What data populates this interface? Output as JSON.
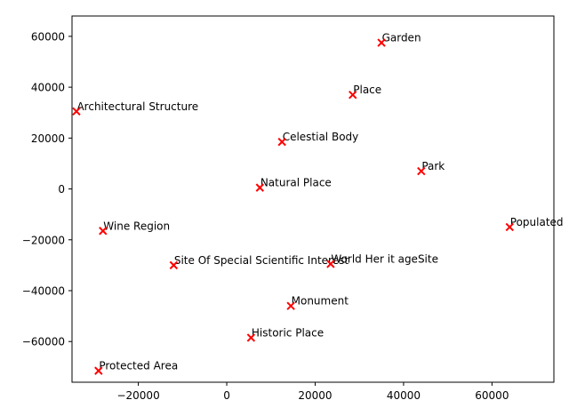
{
  "chart_data": {
    "type": "scatter",
    "title": "",
    "xlabel": "",
    "ylabel": "",
    "xlim": [
      -35000,
      74000
    ],
    "ylim": [
      -76000,
      68000
    ],
    "x_ticks": [
      -20000,
      0,
      20000,
      40000,
      60000
    ],
    "y_ticks": [
      -60000,
      -40000,
      -20000,
      0,
      20000,
      40000,
      60000
    ],
    "x_tick_labels": [
      "−20000",
      "0",
      "20000",
      "40000",
      "60000"
    ],
    "y_tick_labels": [
      "−60000",
      "−40000",
      "−20000",
      "0",
      "20000",
      "40000",
      "60000"
    ],
    "marker": "x",
    "marker_color": "#ff0000",
    "grid": false,
    "points": [
      {
        "label": "Garden",
        "x": 35000,
        "y": 57500
      },
      {
        "label": "Place",
        "x": 28500,
        "y": 37000
      },
      {
        "label": "Architectural Structure",
        "x": -34000,
        "y": 30500
      },
      {
        "label": "Celestial Body",
        "x": 12500,
        "y": 18500
      },
      {
        "label": "Park",
        "x": 44000,
        "y": 7000
      },
      {
        "label": "Natural Place",
        "x": 7500,
        "y": 500
      },
      {
        "label": "Populated",
        "x": 64000,
        "y": -15000
      },
      {
        "label": "Wine Region",
        "x": -28000,
        "y": -16500
      },
      {
        "label": "Site Of Special Scientific Interest",
        "x": -12000,
        "y": -30000
      },
      {
        "label": "World Her it ageSite",
        "x": 23500,
        "y": -29500
      },
      {
        "label": "Monument",
        "x": 14500,
        "y": -46000
      },
      {
        "label": "Historic Place",
        "x": 5500,
        "y": -58500
      },
      {
        "label": "Protected Area",
        "x": -29000,
        "y": -71500
      }
    ]
  }
}
